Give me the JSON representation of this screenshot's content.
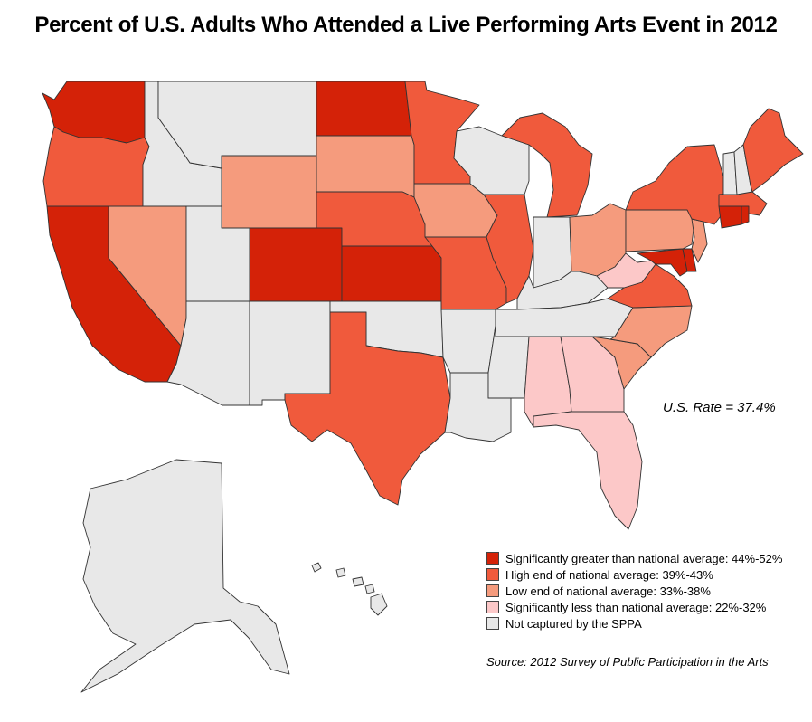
{
  "title": "Percent of U.S. Adults Who Attended a Live Performing Arts Event in 2012",
  "rate_note": "U.S. Rate = 37.4%",
  "source": "Source: 2012 Survey of Public Participation in the Arts",
  "legend": [
    {
      "key": "sig_high",
      "label": "Significantly greater than national average: 44%-52%",
      "color": "#d42208"
    },
    {
      "key": "high",
      "label": "High end of national average: 39%-43%",
      "color": "#f05a3c"
    },
    {
      "key": "low",
      "label": "Low end of national average: 33%-38%",
      "color": "#f59b7d"
    },
    {
      "key": "sig_low",
      "label": "Significantly less than national average: 22%-32%",
      "color": "#fcc8c8"
    },
    {
      "key": "none",
      "label": "Not captured by the SPPA",
      "color": "#e8e8e8"
    }
  ],
  "states": {
    "WA": "sig_high",
    "OR": "high",
    "CA": "sig_high",
    "ID": "none",
    "NV": "low",
    "MT": "none",
    "WY": "low",
    "UT": "none",
    "AZ": "none",
    "CO": "sig_high",
    "NM": "none",
    "ND": "sig_high",
    "SD": "low",
    "NE": "high",
    "KS": "sig_high",
    "OK": "none",
    "TX": "high",
    "MN": "high",
    "IA": "low",
    "MO": "high",
    "AR": "none",
    "LA": "none",
    "WI": "none",
    "IL": "high",
    "MI": "high",
    "IN": "none",
    "OH": "low",
    "KY": "none",
    "TN": "none",
    "MS": "none",
    "AL": "sig_low",
    "GA": "sig_low",
    "FL": "sig_low",
    "SC": "low",
    "NC": "low",
    "VA": "high",
    "WV": "sig_low",
    "MD": "sig_high",
    "DE": "sig_high",
    "PA": "low",
    "NJ": "low",
    "NY": "high",
    "CT": "sig_high",
    "RI": "sig_high",
    "MA": "high",
    "VT": "none",
    "NH": "none",
    "ME": "high",
    "AK": "none",
    "HI": "none"
  }
}
